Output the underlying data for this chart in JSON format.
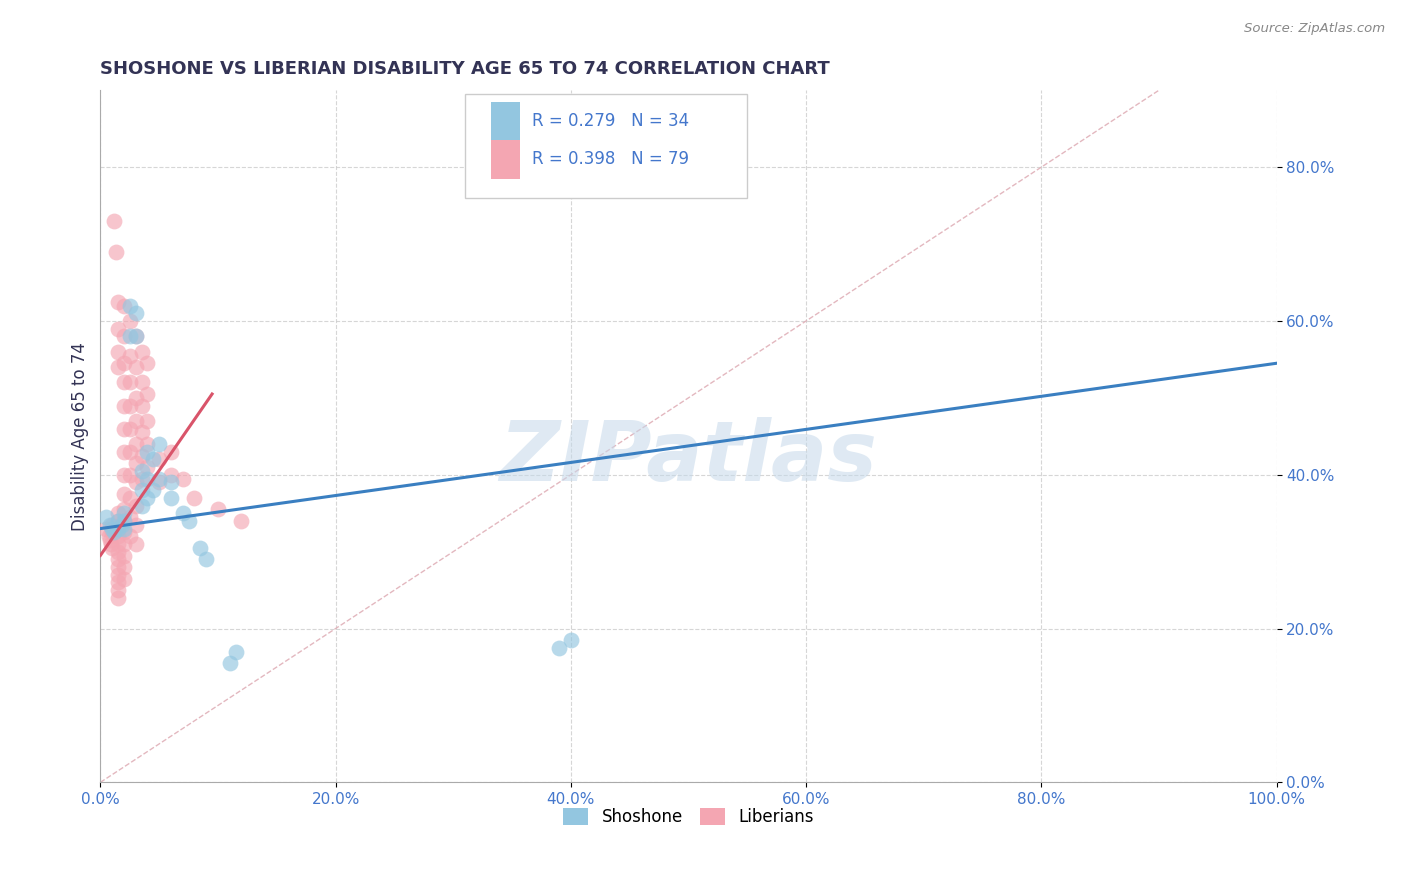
{
  "title": "SHOSHONE VS LIBERIAN DISABILITY AGE 65 TO 74 CORRELATION CHART",
  "source_text": "Source: ZipAtlas.com",
  "ylabel": "Disability Age 65 to 74",
  "xlim": [
    0.0,
    1.0
  ],
  "ylim": [
    0.0,
    0.9
  ],
  "xticks": [
    0.0,
    0.2,
    0.4,
    0.6,
    0.8,
    1.0
  ],
  "xtick_labels": [
    "0.0%",
    "20.0%",
    "40.0%",
    "60.0%",
    "80.0%",
    "100.0%"
  ],
  "yticks": [
    0.0,
    0.2,
    0.4,
    0.6,
    0.8
  ],
  "ytick_labels": [
    "0.0%",
    "20.0%",
    "40.0%",
    "60.0%",
    "80.0%"
  ],
  "watermark": "ZIPatlas",
  "shoshone_color": "#93C6E0",
  "liberian_color": "#F4A6B2",
  "shoshone_line_color": "#3A7FC1",
  "liberian_line_color": "#D9546A",
  "diagonal_color": "#E0B0B8",
  "background_color": "#FFFFFF",
  "grid_color": "#CCCCCC",
  "title_color": "#333355",
  "tick_color": "#4477CC",
  "shoshone_scatter": [
    [
      0.005,
      0.345
    ],
    [
      0.008,
      0.335
    ],
    [
      0.01,
      0.33
    ],
    [
      0.012,
      0.325
    ],
    [
      0.015,
      0.34
    ],
    [
      0.015,
      0.33
    ],
    [
      0.018,
      0.335
    ],
    [
      0.02,
      0.35
    ],
    [
      0.02,
      0.34
    ],
    [
      0.02,
      0.33
    ],
    [
      0.025,
      0.62
    ],
    [
      0.025,
      0.58
    ],
    [
      0.03,
      0.61
    ],
    [
      0.03,
      0.58
    ],
    [
      0.035,
      0.405
    ],
    [
      0.035,
      0.38
    ],
    [
      0.035,
      0.36
    ],
    [
      0.04,
      0.43
    ],
    [
      0.04,
      0.395
    ],
    [
      0.04,
      0.37
    ],
    [
      0.045,
      0.42
    ],
    [
      0.045,
      0.38
    ],
    [
      0.05,
      0.44
    ],
    [
      0.05,
      0.395
    ],
    [
      0.06,
      0.39
    ],
    [
      0.06,
      0.37
    ],
    [
      0.07,
      0.35
    ],
    [
      0.075,
      0.34
    ],
    [
      0.085,
      0.305
    ],
    [
      0.09,
      0.29
    ],
    [
      0.11,
      0.155
    ],
    [
      0.115,
      0.17
    ],
    [
      0.39,
      0.175
    ],
    [
      0.4,
      0.185
    ]
  ],
  "liberian_scatter": [
    [
      0.005,
      0.33
    ],
    [
      0.007,
      0.32
    ],
    [
      0.008,
      0.315
    ],
    [
      0.009,
      0.31
    ],
    [
      0.01,
      0.305
    ],
    [
      0.01,
      0.335
    ],
    [
      0.01,
      0.325
    ],
    [
      0.012,
      0.73
    ],
    [
      0.013,
      0.69
    ],
    [
      0.015,
      0.625
    ],
    [
      0.015,
      0.59
    ],
    [
      0.015,
      0.56
    ],
    [
      0.015,
      0.54
    ],
    [
      0.015,
      0.35
    ],
    [
      0.015,
      0.34
    ],
    [
      0.015,
      0.33
    ],
    [
      0.015,
      0.32
    ],
    [
      0.015,
      0.31
    ],
    [
      0.015,
      0.3
    ],
    [
      0.015,
      0.29
    ],
    [
      0.015,
      0.28
    ],
    [
      0.015,
      0.27
    ],
    [
      0.015,
      0.26
    ],
    [
      0.015,
      0.25
    ],
    [
      0.015,
      0.24
    ],
    [
      0.02,
      0.62
    ],
    [
      0.02,
      0.58
    ],
    [
      0.02,
      0.545
    ],
    [
      0.02,
      0.52
    ],
    [
      0.02,
      0.49
    ],
    [
      0.02,
      0.46
    ],
    [
      0.02,
      0.43
    ],
    [
      0.02,
      0.4
    ],
    [
      0.02,
      0.375
    ],
    [
      0.02,
      0.355
    ],
    [
      0.02,
      0.34
    ],
    [
      0.02,
      0.325
    ],
    [
      0.02,
      0.31
    ],
    [
      0.02,
      0.295
    ],
    [
      0.02,
      0.28
    ],
    [
      0.02,
      0.265
    ],
    [
      0.025,
      0.6
    ],
    [
      0.025,
      0.555
    ],
    [
      0.025,
      0.52
    ],
    [
      0.025,
      0.49
    ],
    [
      0.025,
      0.46
    ],
    [
      0.025,
      0.43
    ],
    [
      0.025,
      0.4
    ],
    [
      0.025,
      0.37
    ],
    [
      0.025,
      0.345
    ],
    [
      0.025,
      0.32
    ],
    [
      0.03,
      0.58
    ],
    [
      0.03,
      0.54
    ],
    [
      0.03,
      0.5
    ],
    [
      0.03,
      0.47
    ],
    [
      0.03,
      0.44
    ],
    [
      0.03,
      0.415
    ],
    [
      0.03,
      0.39
    ],
    [
      0.03,
      0.36
    ],
    [
      0.03,
      0.335
    ],
    [
      0.03,
      0.31
    ],
    [
      0.035,
      0.56
    ],
    [
      0.035,
      0.52
    ],
    [
      0.035,
      0.49
    ],
    [
      0.035,
      0.455
    ],
    [
      0.035,
      0.425
    ],
    [
      0.035,
      0.395
    ],
    [
      0.04,
      0.545
    ],
    [
      0.04,
      0.505
    ],
    [
      0.04,
      0.47
    ],
    [
      0.04,
      0.44
    ],
    [
      0.04,
      0.41
    ],
    [
      0.05,
      0.42
    ],
    [
      0.05,
      0.39
    ],
    [
      0.06,
      0.43
    ],
    [
      0.06,
      0.4
    ],
    [
      0.07,
      0.395
    ],
    [
      0.08,
      0.37
    ],
    [
      0.1,
      0.355
    ],
    [
      0.12,
      0.34
    ]
  ],
  "shoshone_line": {
    "x0": 0.0,
    "y0": 0.33,
    "x1": 1.0,
    "y1": 0.545
  },
  "liberian_line": {
    "x0": 0.0,
    "y0": 0.295,
    "x1": 0.095,
    "y1": 0.505
  },
  "diagonal_line": {
    "x0": 0.0,
    "y0": 0.0,
    "x1": 0.9,
    "y1": 0.9
  }
}
